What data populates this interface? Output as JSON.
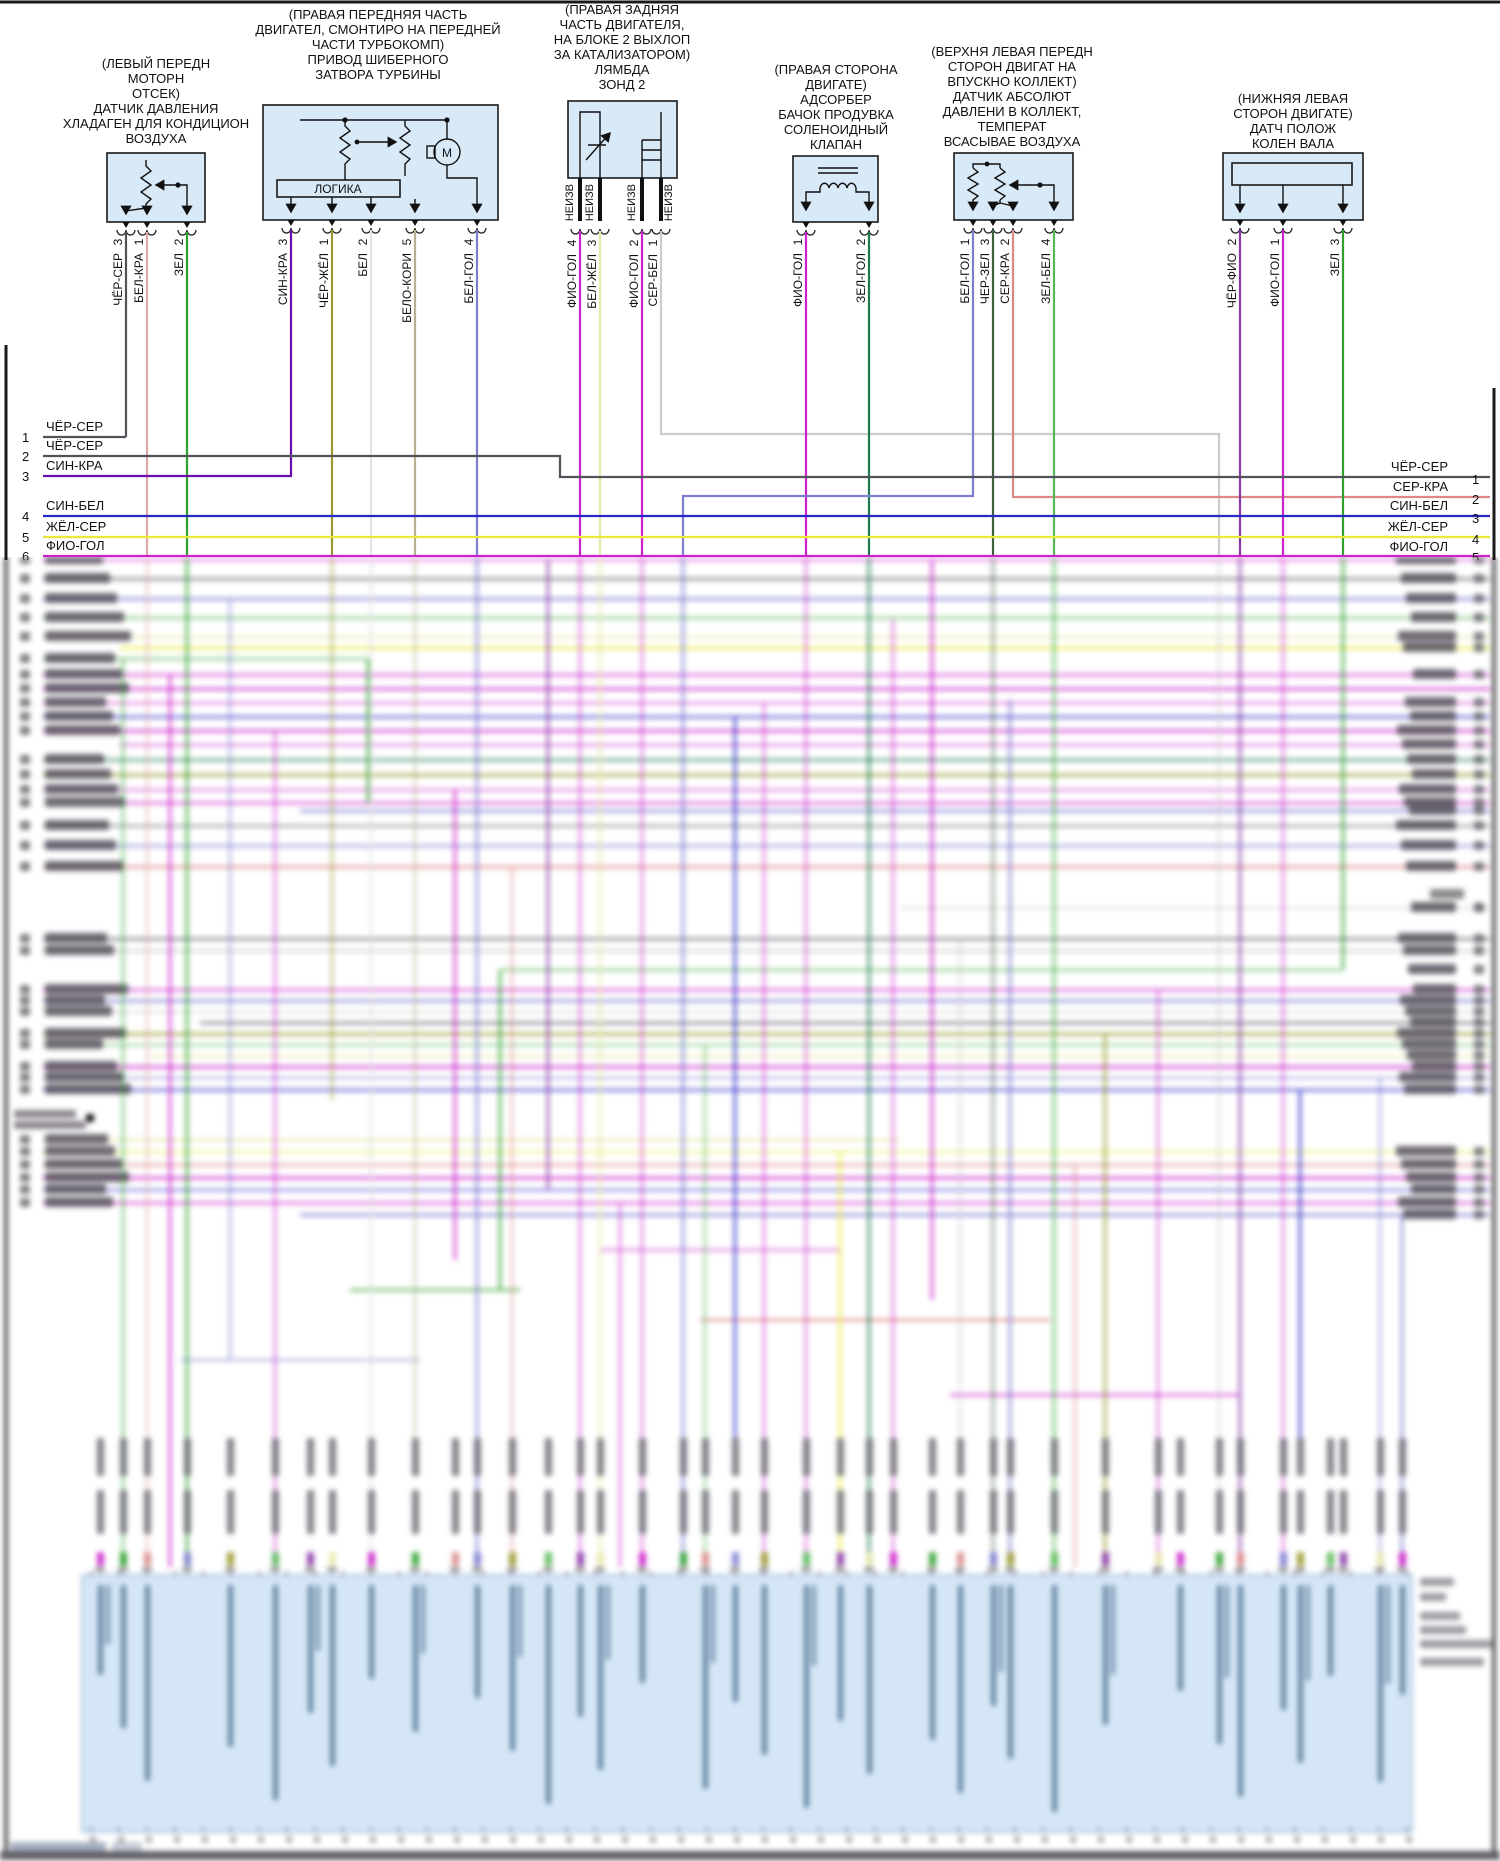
{
  "components": [
    {
      "name": "refrigerant-pressure-sensor",
      "title_lines": [
        "(ЛЕВЫЙ ПЕРЕДН",
        "МОТОРН",
        "ОТСЕК)",
        "ДАТЧИК ДАВЛЕНИЯ",
        "ХЛАДАГЕН ДЛЯ КОНДИЦИОН",
        "ВОЗДУХА"
      ],
      "pins": [
        {
          "num": "3",
          "wire": "ЧЁР-СЕР"
        },
        {
          "num": "1",
          "wire": "БЕЛ-КРА"
        },
        {
          "num": "2",
          "wire": "ЗЕЛ"
        }
      ]
    },
    {
      "name": "turbo-wastegate-actuator",
      "title_lines": [
        "(ПРАВАЯ ПЕРЕДНЯЯ ЧАСТЬ",
        "ДВИГАТЕЛ, СМОНТИРО НА ПЕРЕДНЕЙ",
        "ЧАСТИ ТУРБОКОМП)",
        "ПРИВОД ШИБЕРНОГО",
        "ЗАТВОРА ТУРБИНЫ"
      ],
      "logic_label": "ЛОГИКА",
      "motor_label": "M",
      "pins": [
        {
          "num": "3",
          "wire": "СИН-КРА"
        },
        {
          "num": "1",
          "wire": "ЧЁР-ЖЁЛ"
        },
        {
          "num": "2",
          "wire": "БЕЛ"
        },
        {
          "num": "5",
          "wire": "БЕЛО-КОРИ"
        },
        {
          "num": "4",
          "wire": "БЕЛ-ГОЛ"
        }
      ]
    },
    {
      "name": "lambda-probe-2",
      "title_lines": [
        "(ПРАВАЯ ЗАДНЯЯ",
        "ЧАСТЬ ДВИГАТЕЛЯ,",
        "НА БЛОКЕ 2 ВЫХЛОП",
        "ЗА КАТАЛИЗАТОРОМ)",
        "ЛЯМБДА",
        "ЗОНД 2"
      ],
      "pin_tag": "НЕИЗВ",
      "pins": [
        {
          "num": "4",
          "wire": "ФИО-ГОЛ"
        },
        {
          "num": "3",
          "wire": "БЕЛ-ЖЁЛ"
        },
        {
          "num": "2",
          "wire": "ФИО-ГОЛ"
        },
        {
          "num": "1",
          "wire": "СЕР-БЕЛ"
        }
      ]
    },
    {
      "name": "evap-purge-solenoid-valve",
      "title_lines": [
        "(ПРАВАЯ СТОРОНА",
        "ДВИГАТЕ)",
        "АДСОРБЕР",
        "БАЧОК ПРОДУВКА",
        "СОЛЕНОИДНЫЙ",
        "КЛАПАН"
      ],
      "pins": [
        {
          "num": "1",
          "wire": "ФИО-ГОЛ"
        },
        {
          "num": "2",
          "wire": "ЗЕЛ-ГОЛ"
        }
      ]
    },
    {
      "name": "map-iat-sensor",
      "title_lines": [
        "(ВЕРХНЯ ЛЕВАЯ ПЕРЕДН",
        "СТОРОН ДВИГАТ НА",
        "ВПУСКНО КОЛЛЕКТ)",
        "ДАТЧИК АБСОЛЮТ",
        "ДАВЛЕНИ В КОЛЛЕКТ,",
        "ТЕМПЕРАТ",
        "ВСАСЫВАЕ ВОЗДУХА"
      ],
      "pins": [
        {
          "num": "1",
          "wire": "БЕЛ-ГОЛ"
        },
        {
          "num": "3",
          "wire": "ЧЕР-ЗЕЛ"
        },
        {
          "num": "2",
          "wire": "СЕР-КРА"
        },
        {
          "num": "4",
          "wire": "ЗЕЛ-БЕЛ"
        }
      ]
    },
    {
      "name": "crankshaft-position-sensor",
      "title_lines": [
        "(НИЖНЯЯ ЛЕВАЯ",
        "СТОРОН ДВИГАТЕ)",
        "ДАТЧ ПОЛОЖ",
        "КОЛЕН ВАЛА"
      ],
      "pins": [
        {
          "num": "2",
          "wire": "ЧЁР-ФИО"
        },
        {
          "num": "1",
          "wire": "ФИО-ГОЛ"
        },
        {
          "num": "3",
          "wire": "ЗЕЛ"
        }
      ]
    }
  ],
  "left_rows": [
    {
      "num": "1",
      "label": "ЧЁР-СЕР"
    },
    {
      "num": "2",
      "label": "ЧЁР-СЕР"
    },
    {
      "num": "3",
      "label": "СИН-КРА"
    },
    {
      "num": "4",
      "label": "СИН-БЕЛ"
    },
    {
      "num": "5",
      "label": "ЖЁЛ-СЕР"
    },
    {
      "num": "6",
      "label": "ФИО-ГОЛ"
    }
  ],
  "right_rows": [
    {
      "num": "1",
      "label": "ЧЁР-СЕР"
    },
    {
      "num": "2",
      "label": "СЕР-КРА"
    },
    {
      "num": "3",
      "label": "СИН-БЕЛ"
    },
    {
      "num": "4",
      "label": "ЖЁЛ-СЕР"
    },
    {
      "num": "5",
      "label": "ФИО-ГОЛ"
    }
  ],
  "colors": {
    "cher_ser": "#52525a",
    "bel_kra": "#e2a6a6",
    "zel": "#2fa12f",
    "sin_kra": "#6a0dad",
    "cher_zhel": "#99992e",
    "bel": "#e4e4e4",
    "belo_kori": "#b7b08e",
    "bel_gol": "#7d7dd2",
    "fio_gol": "#cc22cc",
    "bel_zhel": "#e9e9ac",
    "ser_bel": "#cccccc",
    "zel_gol": "#1e7a4c",
    "cher_zel": "#3c5f3c",
    "ser_kra": "#dc8888",
    "zel_bel": "#55b855",
    "cher_fio": "#8838a8",
    "sin_bel": "#2828c8",
    "zhel_ser": "#e9e93a",
    "box_fill": "#d8e9f8",
    "box_border": "#1a1a1a",
    "panel_fill": "#d5e7f7"
  }
}
